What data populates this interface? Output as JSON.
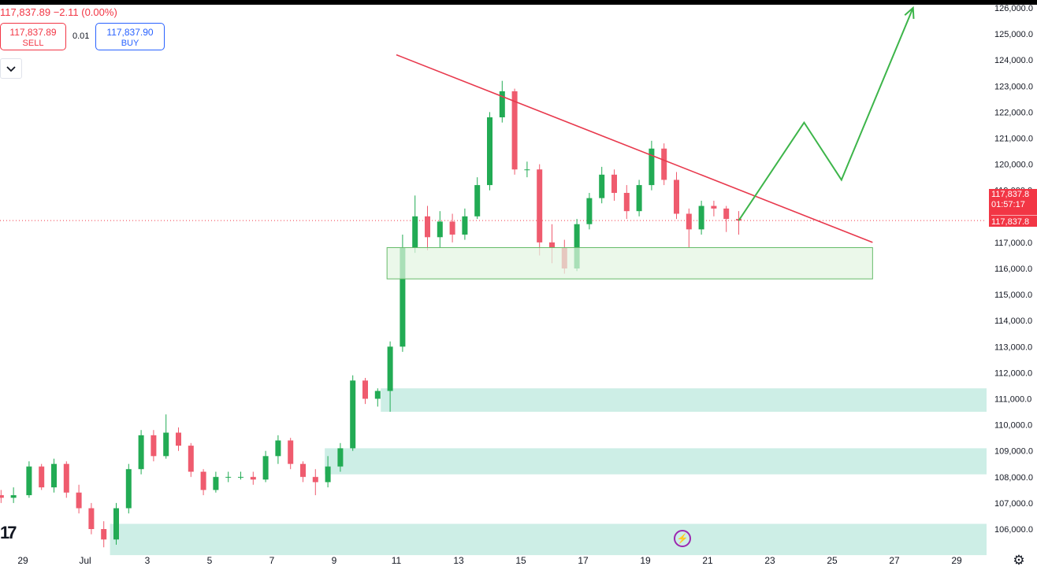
{
  "header": {
    "summary": "117,837.89  −2.11 (0.00%)",
    "sell_price": "117,837.89",
    "sell_label": "SELL",
    "spread": "0.01",
    "buy_price": "117,837.90",
    "buy_label": "BUY"
  },
  "price_tag": {
    "line1": "117,837.8",
    "line2": "01:57:17",
    "line3": "117,837.8"
  },
  "logo_text": "17",
  "icons": {
    "collapse": "chevron-down-icon",
    "flash": "flash-icon",
    "settings": "settings-icon"
  },
  "colors": {
    "up": "#26a69a",
    "up_candle": "#22ab54",
    "down": "#ef5b6e",
    "trendline": "#e8394d",
    "projection": "#3db54a",
    "zone_fill": "#cdeee6",
    "box_fill": "#e3f5e1",
    "box_stroke": "#66bb6a",
    "price_line": "#f23645"
  },
  "chart_data": {
    "type": "candlestick",
    "current_price": 117837.89,
    "y_range": [
      105000,
      126000
    ],
    "y_ticks": [
      106000,
      107000,
      108000,
      109000,
      110000,
      111000,
      112000,
      113000,
      114000,
      115000,
      116000,
      117000,
      118000,
      119000,
      120000,
      121000,
      122000,
      123000,
      124000,
      125000,
      126000
    ],
    "y_tick_labels": [
      "106,000.0",
      "107,000.0",
      "108,000.0",
      "109,000.0",
      "110,000.0",
      "111,000.0",
      "112,000.0",
      "113,000.0",
      "114,000.0",
      "115,000.0",
      "116,000.0",
      "117,000.0",
      "118,000.0",
      "119,000.0",
      "120,000.0",
      "121,000.0",
      "122,000.0",
      "123,000.0",
      "124,000.0",
      "125,000.0",
      "126,000.0"
    ],
    "x_ticks": [
      {
        "label": "29",
        "day": -1
      },
      {
        "label": "Jul",
        "day": 1
      },
      {
        "label": "3",
        "day": 3
      },
      {
        "label": "5",
        "day": 5
      },
      {
        "label": "7",
        "day": 7
      },
      {
        "label": "9",
        "day": 9
      },
      {
        "label": "11",
        "day": 11
      },
      {
        "label": "13",
        "day": 13
      },
      {
        "label": "15",
        "day": 15
      },
      {
        "label": "17",
        "day": 17
      },
      {
        "label": "19",
        "day": 19
      },
      {
        "label": "21",
        "day": 21
      },
      {
        "label": "23",
        "day": 23
      },
      {
        "label": "25",
        "day": 25
      },
      {
        "label": "27",
        "day": 27
      },
      {
        "label": "29",
        "day": 29
      }
    ],
    "candles": [
      {
        "d": -1.7,
        "o": 107300,
        "h": 107500,
        "l": 107000,
        "c": 107200
      },
      {
        "d": -1.3,
        "o": 107200,
        "h": 107600,
        "l": 107000,
        "c": 107300
      },
      {
        "d": -0.8,
        "o": 107300,
        "h": 108600,
        "l": 107200,
        "c": 108400
      },
      {
        "d": -0.4,
        "o": 108400,
        "h": 108500,
        "l": 107500,
        "c": 107600
      },
      {
        "d": 0.0,
        "o": 107600,
        "h": 108700,
        "l": 107400,
        "c": 108500
      },
      {
        "d": 0.4,
        "o": 108500,
        "h": 108600,
        "l": 107200,
        "c": 107400
      },
      {
        "d": 0.8,
        "o": 107400,
        "h": 107700,
        "l": 106600,
        "c": 106800
      },
      {
        "d": 1.2,
        "o": 106800,
        "h": 107000,
        "l": 105800,
        "c": 106000
      },
      {
        "d": 1.6,
        "o": 106000,
        "h": 106300,
        "l": 105300,
        "c": 105600
      },
      {
        "d": 2.0,
        "o": 105600,
        "h": 107000,
        "l": 105400,
        "c": 106800
      },
      {
        "d": 2.4,
        "o": 106800,
        "h": 108500,
        "l": 106600,
        "c": 108300
      },
      {
        "d": 2.8,
        "o": 108300,
        "h": 109800,
        "l": 108100,
        "c": 109600
      },
      {
        "d": 3.2,
        "o": 109600,
        "h": 109800,
        "l": 108600,
        "c": 108800
      },
      {
        "d": 3.6,
        "o": 108800,
        "h": 110400,
        "l": 108700,
        "c": 109700
      },
      {
        "d": 4.0,
        "o": 109700,
        "h": 109900,
        "l": 109000,
        "c": 109200
      },
      {
        "d": 4.4,
        "o": 109200,
        "h": 109300,
        "l": 108000,
        "c": 108200
      },
      {
        "d": 4.8,
        "o": 108200,
        "h": 108300,
        "l": 107300,
        "c": 107500
      },
      {
        "d": 5.2,
        "o": 107500,
        "h": 108200,
        "l": 107400,
        "c": 108000
      },
      {
        "d": 5.6,
        "o": 108000,
        "h": 108200,
        "l": 107800,
        "c": 108000
      },
      {
        "d": 6.0,
        "o": 108000,
        "h": 108200,
        "l": 107900,
        "c": 108000
      },
      {
        "d": 6.4,
        "o": 108000,
        "h": 108200,
        "l": 107700,
        "c": 107900
      },
      {
        "d": 6.8,
        "o": 107900,
        "h": 109000,
        "l": 107800,
        "c": 108800
      },
      {
        "d": 7.2,
        "o": 108800,
        "h": 109600,
        "l": 108500,
        "c": 109400
      },
      {
        "d": 7.6,
        "o": 109400,
        "h": 109500,
        "l": 108300,
        "c": 108500
      },
      {
        "d": 8.0,
        "o": 108500,
        "h": 108600,
        "l": 107800,
        "c": 108000
      },
      {
        "d": 8.4,
        "o": 108000,
        "h": 108300,
        "l": 107300,
        "c": 107800
      },
      {
        "d": 8.8,
        "o": 107800,
        "h": 108800,
        "l": 107600,
        "c": 108400
      },
      {
        "d": 9.2,
        "o": 108400,
        "h": 109300,
        "l": 108200,
        "c": 109100
      },
      {
        "d": 9.6,
        "o": 109100,
        "h": 111900,
        "l": 109000,
        "c": 111700
      },
      {
        "d": 10.0,
        "o": 111700,
        "h": 111800,
        "l": 110800,
        "c": 111000
      },
      {
        "d": 10.4,
        "o": 111000,
        "h": 111400,
        "l": 110700,
        "c": 111300
      },
      {
        "d": 10.8,
        "o": 111300,
        "h": 113200,
        "l": 110500,
        "c": 113000
      },
      {
        "d": 11.2,
        "o": 113000,
        "h": 117300,
        "l": 112800,
        "c": 116800
      },
      {
        "d": 11.6,
        "o": 116800,
        "h": 118800,
        "l": 116600,
        "c": 118000
      },
      {
        "d": 12.0,
        "o": 118000,
        "h": 118400,
        "l": 116700,
        "c": 117200
      },
      {
        "d": 12.4,
        "o": 117200,
        "h": 118200,
        "l": 116800,
        "c": 117800
      },
      {
        "d": 12.8,
        "o": 117800,
        "h": 118100,
        "l": 117000,
        "c": 117300
      },
      {
        "d": 13.2,
        "o": 117300,
        "h": 118300,
        "l": 117100,
        "c": 118000
      },
      {
        "d": 13.6,
        "o": 118000,
        "h": 119500,
        "l": 117900,
        "c": 119200
      },
      {
        "d": 14.0,
        "o": 119200,
        "h": 122000,
        "l": 119000,
        "c": 121800
      },
      {
        "d": 14.4,
        "o": 121800,
        "h": 123200,
        "l": 121600,
        "c": 122800
      },
      {
        "d": 14.8,
        "o": 122800,
        "h": 122900,
        "l": 119600,
        "c": 119800
      },
      {
        "d": 15.2,
        "o": 119800,
        "h": 120100,
        "l": 119500,
        "c": 119800
      },
      {
        "d": 15.6,
        "o": 119800,
        "h": 120000,
        "l": 116500,
        "c": 117000
      },
      {
        "d": 16.0,
        "o": 117000,
        "h": 117700,
        "l": 116200,
        "c": 116800
      },
      {
        "d": 16.4,
        "o": 116800,
        "h": 117100,
        "l": 115800,
        "c": 116000
      },
      {
        "d": 16.8,
        "o": 116000,
        "h": 117900,
        "l": 115900,
        "c": 117700
      },
      {
        "d": 17.2,
        "o": 117700,
        "h": 118900,
        "l": 117500,
        "c": 118700
      },
      {
        "d": 17.6,
        "o": 118700,
        "h": 119900,
        "l": 118500,
        "c": 119600
      },
      {
        "d": 18.0,
        "o": 119600,
        "h": 119800,
        "l": 118600,
        "c": 118900
      },
      {
        "d": 18.4,
        "o": 118900,
        "h": 119200,
        "l": 117900,
        "c": 118200
      },
      {
        "d": 18.8,
        "o": 118200,
        "h": 119400,
        "l": 118000,
        "c": 119200
      },
      {
        "d": 19.2,
        "o": 119200,
        "h": 120900,
        "l": 119000,
        "c": 120600
      },
      {
        "d": 19.6,
        "o": 120600,
        "h": 120800,
        "l": 119200,
        "c": 119400
      },
      {
        "d": 20.0,
        "o": 119400,
        "h": 119700,
        "l": 117900,
        "c": 118100
      },
      {
        "d": 20.4,
        "o": 118100,
        "h": 118300,
        "l": 116800,
        "c": 117500
      },
      {
        "d": 20.8,
        "o": 117500,
        "h": 118600,
        "l": 117300,
        "c": 118400
      },
      {
        "d": 21.2,
        "o": 118400,
        "h": 118600,
        "l": 118000,
        "c": 118300
      },
      {
        "d": 21.6,
        "o": 118300,
        "h": 118400,
        "l": 117400,
        "c": 117900
      },
      {
        "d": 22.0,
        "o": 117900,
        "h": 118200,
        "l": 117300,
        "c": 117840
      }
    ],
    "annotations": {
      "trendline": {
        "from": {
          "day": 11.0,
          "price": 124200
        },
        "to": {
          "day": 26.3,
          "price": 117000
        }
      },
      "support_box": {
        "day_from": 10.7,
        "day_to": 26.3,
        "price_low": 115600,
        "price_high": 116800
      },
      "zones": [
        {
          "day_from": 10.5,
          "price_low": 110500,
          "price_high": 111400
        },
        {
          "day_from": 8.7,
          "price_low": 108100,
          "price_high": 109100
        },
        {
          "day_from": 1.8,
          "price_low": 105000,
          "price_high": 106200
        }
      ],
      "projection": [
        {
          "day": 22.0,
          "price": 117840
        },
        {
          "day": 24.1,
          "price": 121600
        },
        {
          "day": 25.3,
          "price": 119400
        },
        {
          "day": 27.6,
          "price": 126000
        }
      ]
    }
  }
}
